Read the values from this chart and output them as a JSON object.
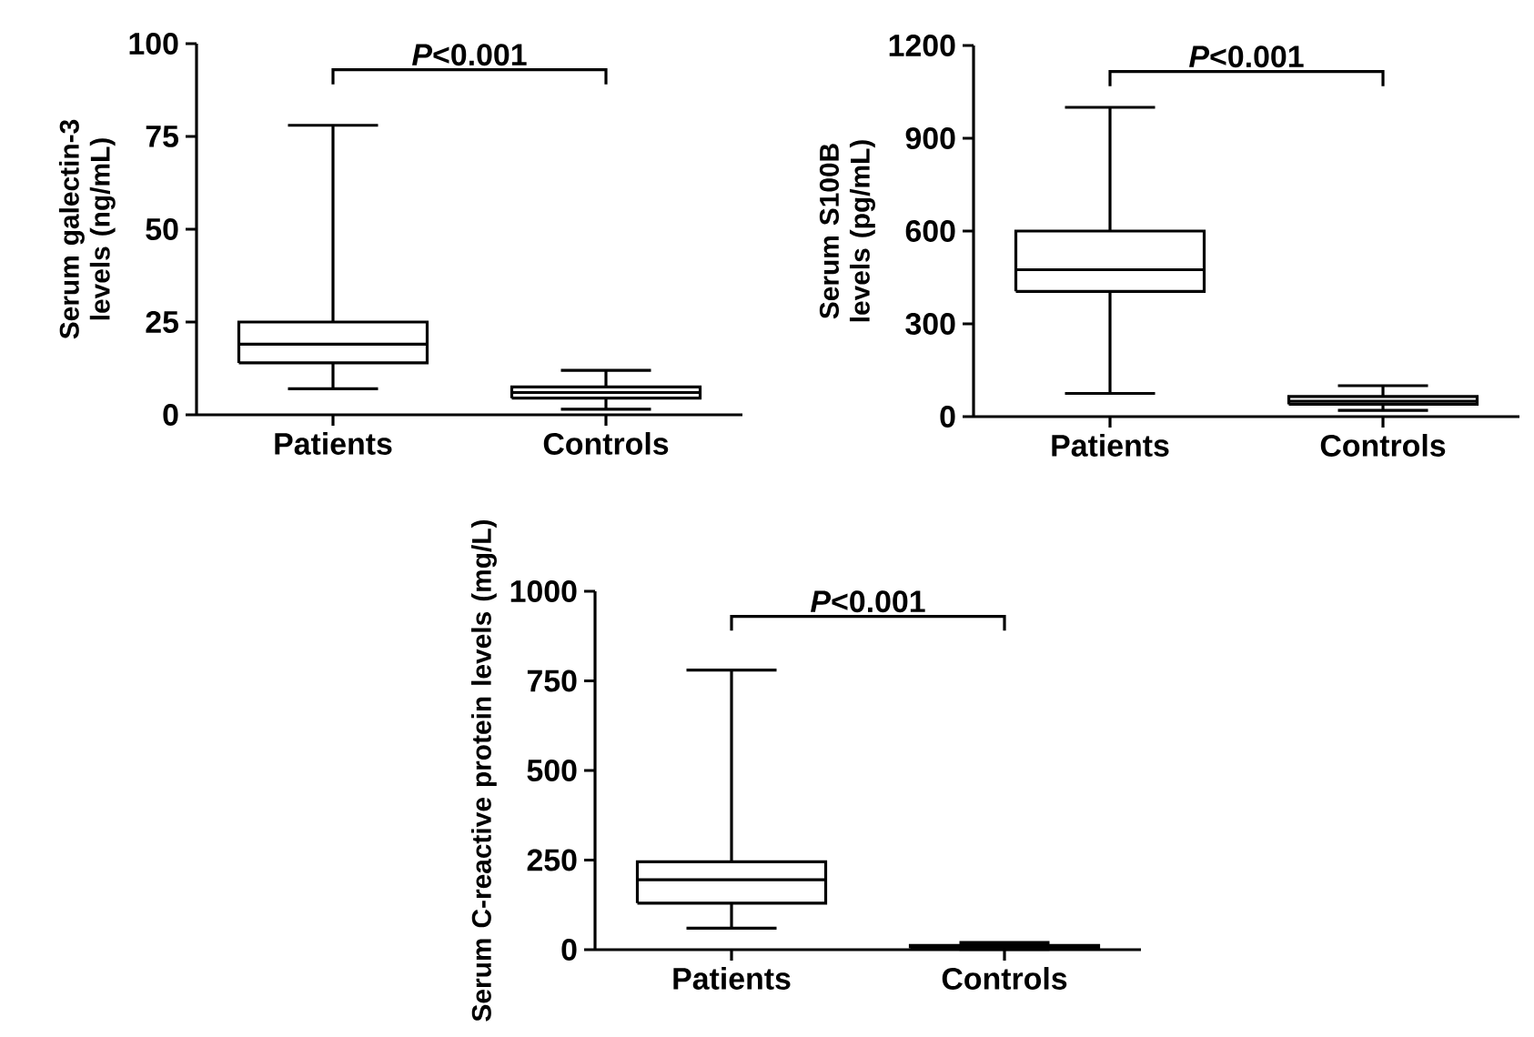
{
  "chart_data": [
    {
      "type": "box",
      "categories": [
        "Patients",
        "Controls"
      ],
      "ylabel": "Serum galectin-3 levels (ng/mL)",
      "ylim": [
        0,
        100
      ],
      "yticks": [
        0,
        25,
        50,
        75,
        100
      ],
      "annotations": [
        "*P*<0.001"
      ],
      "boxes": [
        {
          "low": 7,
          "q1": 14,
          "median": 19,
          "q3": 25,
          "high": 78
        },
        {
          "low": 1.5,
          "q1": 4.5,
          "median": 6,
          "q3": 7.5,
          "high": 12
        }
      ]
    },
    {
      "type": "box",
      "categories": [
        "Patients",
        "Controls"
      ],
      "ylabel": "Serum S100B levels (pg/mL)",
      "ylim": [
        0,
        1200
      ],
      "yticks": [
        0,
        300,
        600,
        900,
        1200
      ],
      "annotations": [
        "*P*<0.001"
      ],
      "boxes": [
        {
          "low": 75,
          "q1": 405,
          "median": 475,
          "q3": 600,
          "high": 1000
        },
        {
          "low": 20,
          "q1": 40,
          "median": 50,
          "q3": 65,
          "high": 100
        }
      ]
    },
    {
      "type": "box",
      "categories": [
        "Patients",
        "Controls"
      ],
      "ylabel": "Serum C-reactive protein levels (mg/L)",
      "ylim": [
        0,
        1000
      ],
      "yticks": [
        0,
        250,
        500,
        750,
        1000
      ],
      "annotations": [
        "*P*<0.001"
      ],
      "boxes": [
        {
          "low": 60,
          "q1": 130,
          "median": 195,
          "q3": 245,
          "high": 780
        },
        {
          "low": 1,
          "q1": 4,
          "median": 7,
          "q3": 12,
          "high": 20
        }
      ]
    }
  ]
}
